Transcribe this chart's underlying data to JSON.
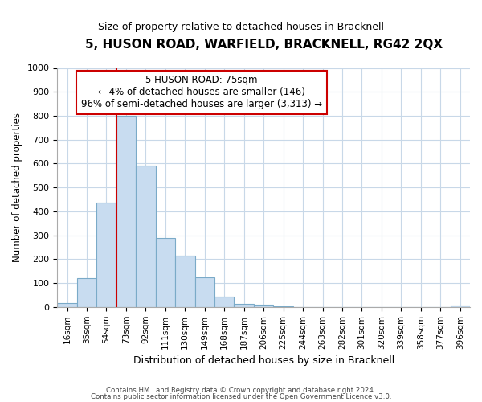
{
  "title": "5, HUSON ROAD, WARFIELD, BRACKNELL, RG42 2QX",
  "subtitle": "Size of property relative to detached houses in Bracknell",
  "xlabel": "Distribution of detached houses by size in Bracknell",
  "ylabel": "Number of detached properties",
  "bar_color": "#c8dcf0",
  "bar_edge_color": "#7aaac8",
  "annotation_box_color": "#cc0000",
  "vline_color": "#cc0000",
  "categories": [
    "16sqm",
    "35sqm",
    "54sqm",
    "73sqm",
    "92sqm",
    "111sqm",
    "130sqm",
    "149sqm",
    "168sqm",
    "187sqm",
    "206sqm",
    "225sqm",
    "244sqm",
    "263sqm",
    "282sqm",
    "301sqm",
    "320sqm",
    "339sqm",
    "358sqm",
    "377sqm",
    "396sqm"
  ],
  "values": [
    15,
    120,
    435,
    800,
    590,
    290,
    215,
    125,
    42,
    13,
    8,
    3,
    1,
    1,
    0,
    0,
    0,
    0,
    0,
    0,
    5
  ],
  "ylim": [
    0,
    1000
  ],
  "yticks": [
    0,
    100,
    200,
    300,
    400,
    500,
    600,
    700,
    800,
    900,
    1000
  ],
  "annotation_title": "5 HUSON ROAD: 75sqm",
  "annotation_line1": "← 4% of detached houses are smaller (146)",
  "annotation_line2": "96% of semi-detached houses are larger (3,313) →",
  "footnote1": "Contains HM Land Registry data © Crown copyright and database right 2024.",
  "footnote2": "Contains public sector information licensed under the Open Government Licence v3.0.",
  "vline_x_index": 3,
  "background_color": "#ffffff",
  "grid_color": "#c8d8e8",
  "figsize": [
    6.0,
    5.0
  ],
  "dpi": 100
}
